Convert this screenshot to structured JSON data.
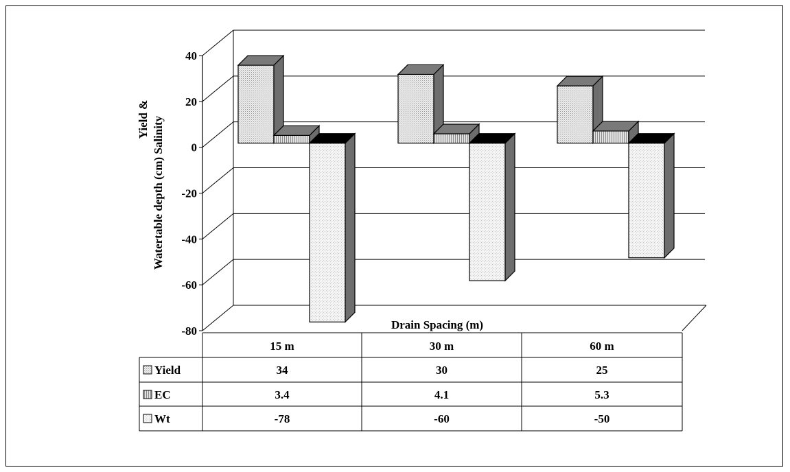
{
  "chart_data": {
    "type": "bar",
    "style": "3d-clustered-column-with-data-table",
    "categories": [
      "15 m",
      "30 m",
      "60 m"
    ],
    "series": [
      {
        "name": "Yield",
        "values": [
          34,
          30,
          25
        ],
        "value_labels": [
          "34",
          "30",
          "25"
        ],
        "pattern": "fine-dots"
      },
      {
        "name": "EC",
        "values": [
          3.4,
          4.1,
          5.3
        ],
        "value_labels": [
          "3.4",
          "4.1",
          "5.3"
        ],
        "pattern": "vertical-lines"
      },
      {
        "name": "Wt",
        "values": [
          -78,
          -60,
          -50
        ],
        "value_labels": [
          "-78",
          "-60",
          "-50"
        ],
        "pattern": "light-dots"
      }
    ],
    "ylabel_line1": "Yield &",
    "ylabel_line2": "Watertable depth  (cm)     Salinity",
    "xlabel": "Drain Spacing (m)",
    "yticks": [
      "40",
      "20",
      "0",
      "-20",
      "-40",
      "-60",
      "-80"
    ],
    "ylim": [
      -80,
      40
    ],
    "grid": true,
    "legend": "data-table-left"
  }
}
